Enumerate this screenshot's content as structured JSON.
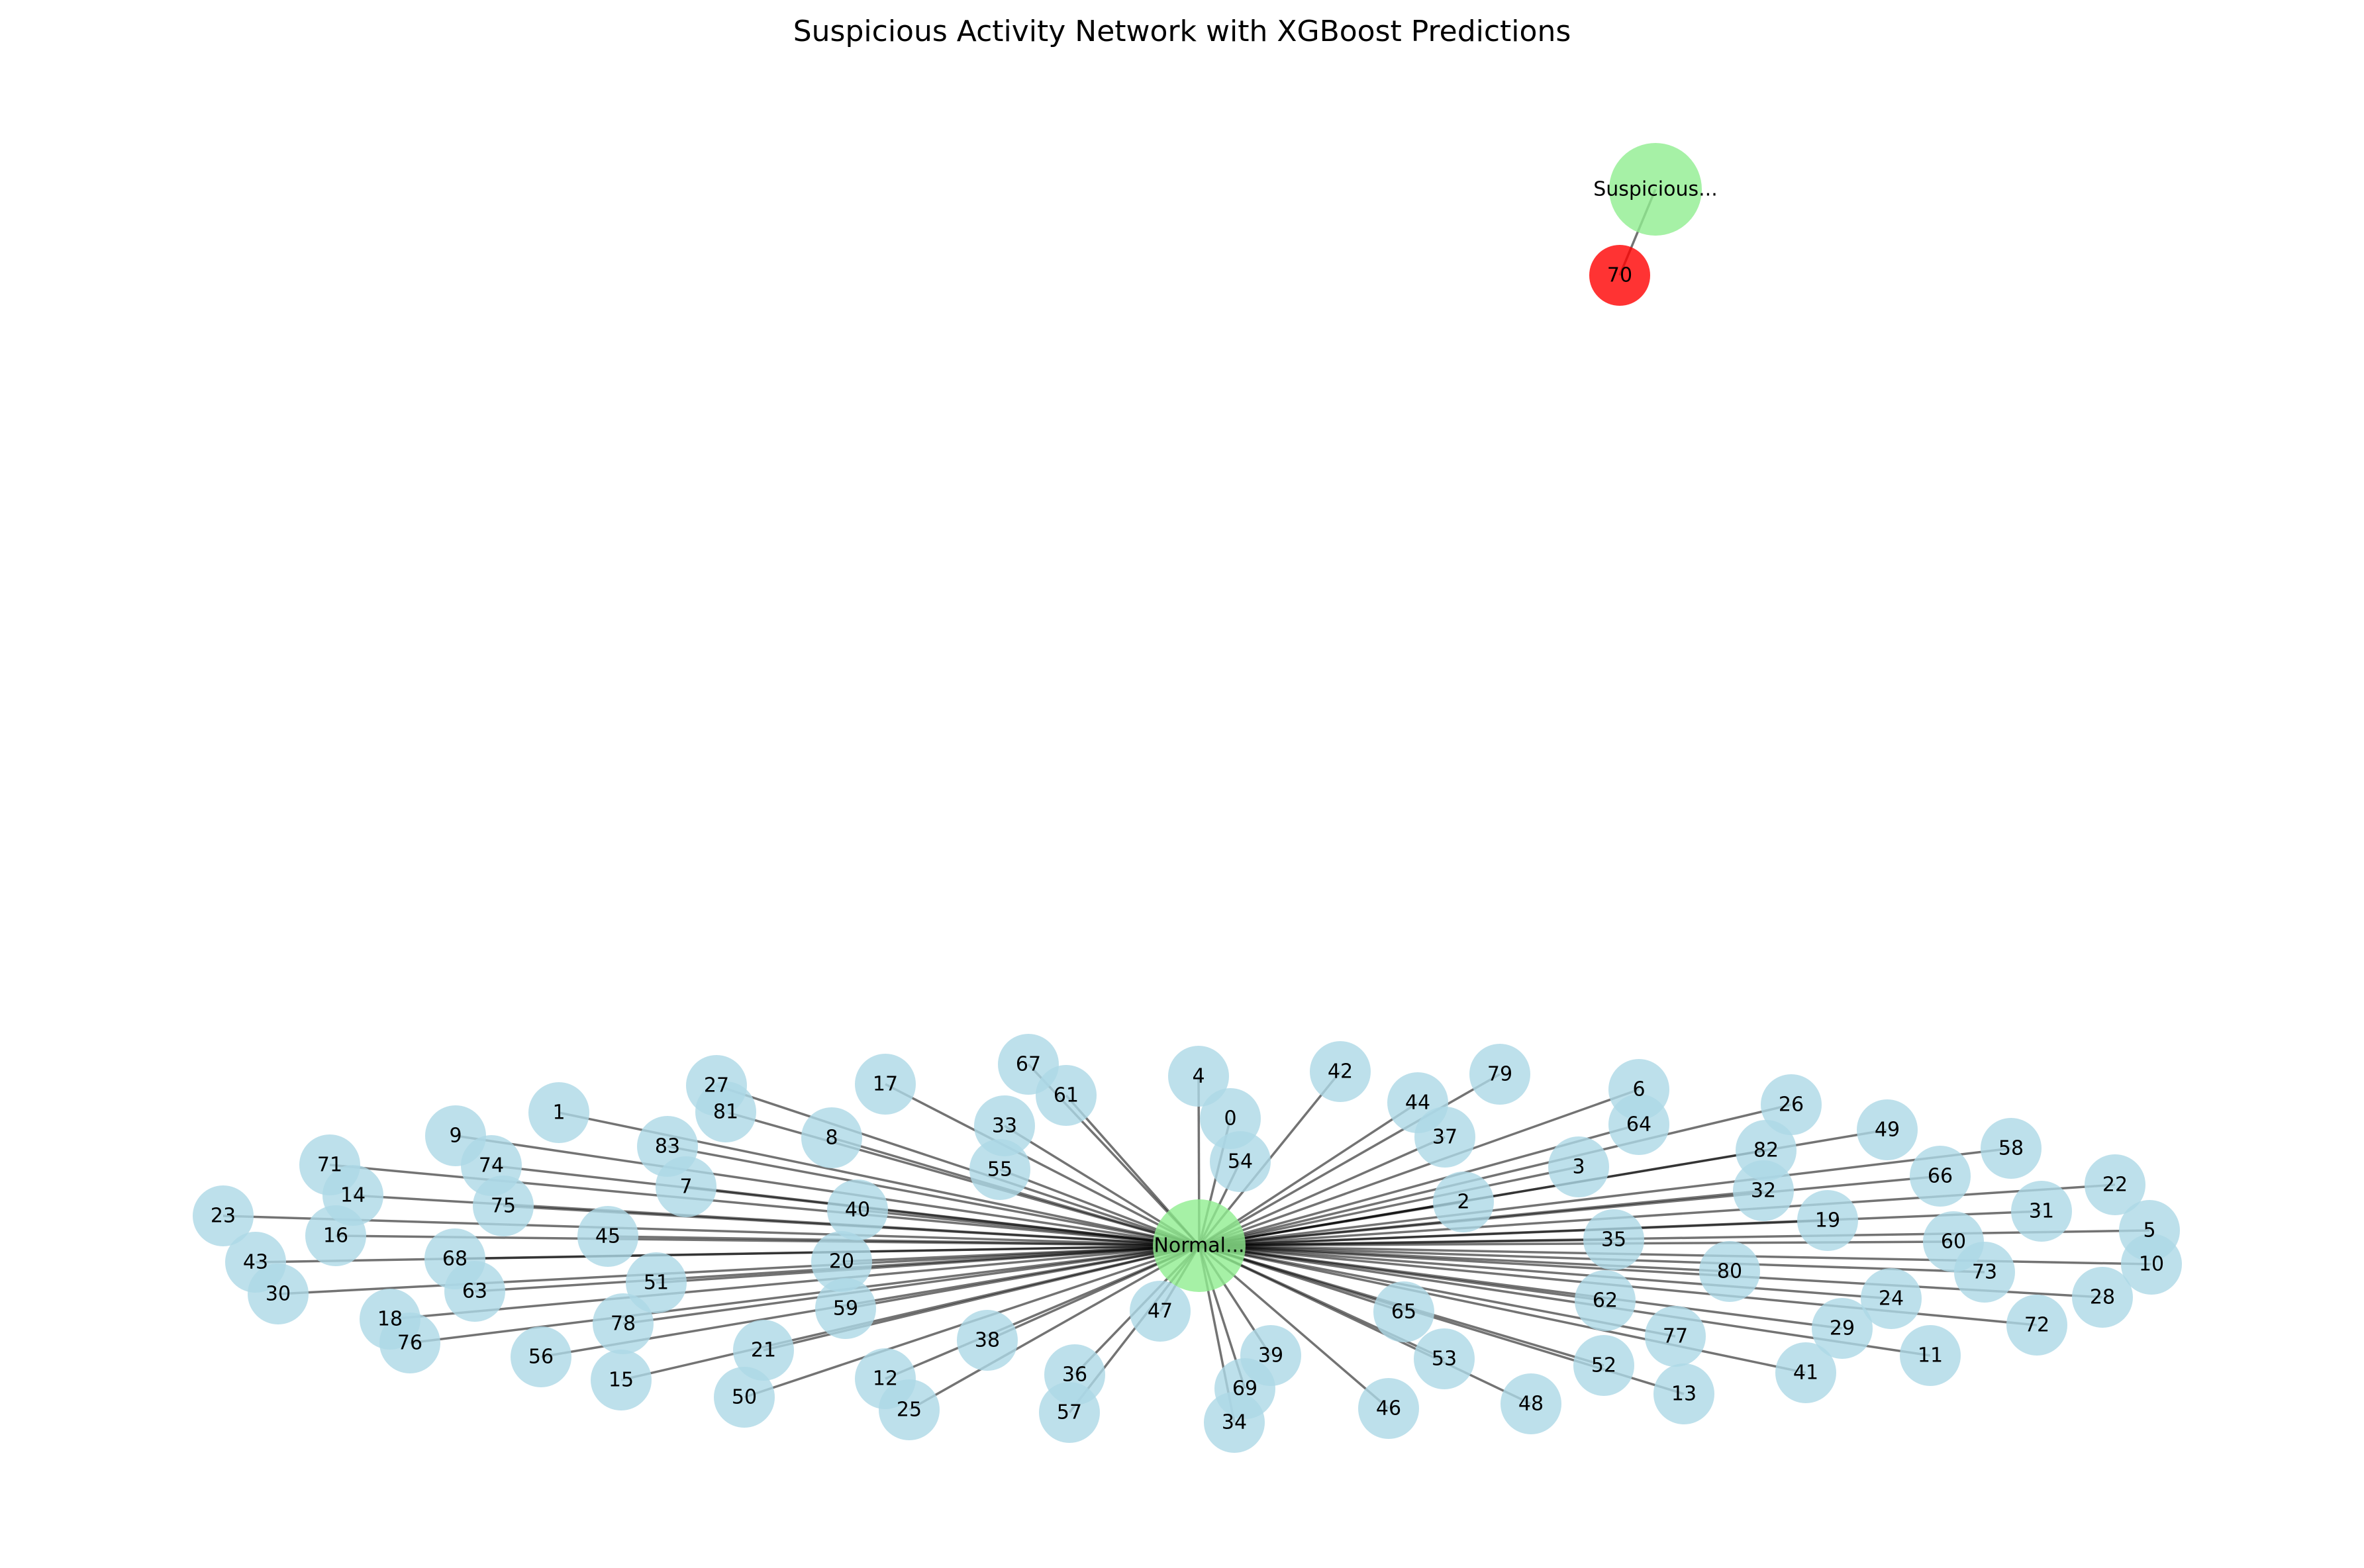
{
  "title": "Suspicious Activity Network with XGBoost Predictions",
  "colors": {
    "normal_node": "#add8e6",
    "hub_node": "#90ee90",
    "suspicious_node": "#ff0000",
    "edge": "#000000"
  },
  "hubs": [
    {
      "id": "normal-hub",
      "label": "Normal..."
    },
    {
      "id": "suspicious-hub",
      "label": "Suspicious..."
    }
  ],
  "nodes": [
    {
      "id": "0",
      "label": "0",
      "class": "normal",
      "hub": "normal-hub"
    },
    {
      "id": "1",
      "label": "1",
      "class": "normal",
      "hub": "normal-hub"
    },
    {
      "id": "2",
      "label": "2",
      "class": "normal",
      "hub": "normal-hub"
    },
    {
      "id": "3",
      "label": "3",
      "class": "normal",
      "hub": "normal-hub"
    },
    {
      "id": "4",
      "label": "4",
      "class": "normal",
      "hub": "normal-hub"
    },
    {
      "id": "5",
      "label": "5",
      "class": "normal",
      "hub": "normal-hub"
    },
    {
      "id": "6",
      "label": "6",
      "class": "normal",
      "hub": "normal-hub"
    },
    {
      "id": "7",
      "label": "7",
      "class": "normal",
      "hub": "normal-hub"
    },
    {
      "id": "8",
      "label": "8",
      "class": "normal",
      "hub": "normal-hub"
    },
    {
      "id": "9",
      "label": "9",
      "class": "normal",
      "hub": "normal-hub"
    },
    {
      "id": "10",
      "label": "10",
      "class": "normal",
      "hub": "normal-hub"
    },
    {
      "id": "11",
      "label": "11",
      "class": "normal",
      "hub": "normal-hub"
    },
    {
      "id": "12",
      "label": "12",
      "class": "normal",
      "hub": "normal-hub"
    },
    {
      "id": "13",
      "label": "13",
      "class": "normal",
      "hub": "normal-hub"
    },
    {
      "id": "14",
      "label": "14",
      "class": "normal",
      "hub": "normal-hub"
    },
    {
      "id": "15",
      "label": "15",
      "class": "normal",
      "hub": "normal-hub"
    },
    {
      "id": "16",
      "label": "16",
      "class": "normal",
      "hub": "normal-hub"
    },
    {
      "id": "17",
      "label": "17",
      "class": "normal",
      "hub": "normal-hub"
    },
    {
      "id": "18",
      "label": "18",
      "class": "normal",
      "hub": "normal-hub"
    },
    {
      "id": "19",
      "label": "19",
      "class": "normal",
      "hub": "normal-hub"
    },
    {
      "id": "20",
      "label": "20",
      "class": "normal",
      "hub": "normal-hub"
    },
    {
      "id": "21",
      "label": "21",
      "class": "normal",
      "hub": "normal-hub"
    },
    {
      "id": "22",
      "label": "22",
      "class": "normal",
      "hub": "normal-hub"
    },
    {
      "id": "23",
      "label": "23",
      "class": "normal",
      "hub": "normal-hub"
    },
    {
      "id": "24",
      "label": "24",
      "class": "normal",
      "hub": "normal-hub"
    },
    {
      "id": "25",
      "label": "25",
      "class": "normal",
      "hub": "normal-hub"
    },
    {
      "id": "26",
      "label": "26",
      "class": "normal",
      "hub": "normal-hub"
    },
    {
      "id": "27",
      "label": "27",
      "class": "normal",
      "hub": "normal-hub"
    },
    {
      "id": "28",
      "label": "28",
      "class": "normal",
      "hub": "normal-hub"
    },
    {
      "id": "29",
      "label": "29",
      "class": "normal",
      "hub": "normal-hub"
    },
    {
      "id": "30",
      "label": "30",
      "class": "normal",
      "hub": "normal-hub"
    },
    {
      "id": "31",
      "label": "31",
      "class": "normal",
      "hub": "normal-hub"
    },
    {
      "id": "32",
      "label": "32",
      "class": "normal",
      "hub": "normal-hub"
    },
    {
      "id": "33",
      "label": "33",
      "class": "normal",
      "hub": "normal-hub"
    },
    {
      "id": "34",
      "label": "34",
      "class": "normal",
      "hub": "normal-hub"
    },
    {
      "id": "35",
      "label": "35",
      "class": "normal",
      "hub": "normal-hub"
    },
    {
      "id": "36",
      "label": "36",
      "class": "normal",
      "hub": "normal-hub"
    },
    {
      "id": "37",
      "label": "37",
      "class": "normal",
      "hub": "normal-hub"
    },
    {
      "id": "38",
      "label": "38",
      "class": "normal",
      "hub": "normal-hub"
    },
    {
      "id": "39",
      "label": "39",
      "class": "normal",
      "hub": "normal-hub"
    },
    {
      "id": "40",
      "label": "40",
      "class": "normal",
      "hub": "normal-hub"
    },
    {
      "id": "41",
      "label": "41",
      "class": "normal",
      "hub": "normal-hub"
    },
    {
      "id": "42",
      "label": "42",
      "class": "normal",
      "hub": "normal-hub"
    },
    {
      "id": "43",
      "label": "43",
      "class": "normal",
      "hub": "normal-hub"
    },
    {
      "id": "44",
      "label": "44",
      "class": "normal",
      "hub": "normal-hub"
    },
    {
      "id": "45",
      "label": "45",
      "class": "normal",
      "hub": "normal-hub"
    },
    {
      "id": "46",
      "label": "46",
      "class": "normal",
      "hub": "normal-hub"
    },
    {
      "id": "47",
      "label": "47",
      "class": "normal",
      "hub": "normal-hub"
    },
    {
      "id": "48",
      "label": "48",
      "class": "normal",
      "hub": "normal-hub"
    },
    {
      "id": "49",
      "label": "49",
      "class": "normal",
      "hub": "normal-hub"
    },
    {
      "id": "50",
      "label": "50",
      "class": "normal",
      "hub": "normal-hub"
    },
    {
      "id": "51",
      "label": "51",
      "class": "normal",
      "hub": "normal-hub"
    },
    {
      "id": "52",
      "label": "52",
      "class": "normal",
      "hub": "normal-hub"
    },
    {
      "id": "53",
      "label": "53",
      "class": "normal",
      "hub": "normal-hub"
    },
    {
      "id": "54",
      "label": "54",
      "class": "normal",
      "hub": "normal-hub"
    },
    {
      "id": "55",
      "label": "55",
      "class": "normal",
      "hub": "normal-hub"
    },
    {
      "id": "56",
      "label": "56",
      "class": "normal",
      "hub": "normal-hub"
    },
    {
      "id": "57",
      "label": "57",
      "class": "normal",
      "hub": "normal-hub"
    },
    {
      "id": "58",
      "label": "58",
      "class": "normal",
      "hub": "normal-hub"
    },
    {
      "id": "59",
      "label": "59",
      "class": "normal",
      "hub": "normal-hub"
    },
    {
      "id": "60",
      "label": "60",
      "class": "normal",
      "hub": "normal-hub"
    },
    {
      "id": "61",
      "label": "61",
      "class": "normal",
      "hub": "normal-hub"
    },
    {
      "id": "62",
      "label": "62",
      "class": "normal",
      "hub": "normal-hub"
    },
    {
      "id": "63",
      "label": "63",
      "class": "normal",
      "hub": "normal-hub"
    },
    {
      "id": "64",
      "label": "64",
      "class": "normal",
      "hub": "normal-hub"
    },
    {
      "id": "65",
      "label": "65",
      "class": "normal",
      "hub": "normal-hub"
    },
    {
      "id": "66",
      "label": "66",
      "class": "normal",
      "hub": "normal-hub"
    },
    {
      "id": "67",
      "label": "67",
      "class": "normal",
      "hub": "normal-hub"
    },
    {
      "id": "68",
      "label": "68",
      "class": "normal",
      "hub": "normal-hub"
    },
    {
      "id": "69",
      "label": "69",
      "class": "normal",
      "hub": "normal-hub"
    },
    {
      "id": "70",
      "label": "70",
      "class": "suspicious",
      "hub": "suspicious-hub"
    },
    {
      "id": "71",
      "label": "71",
      "class": "normal",
      "hub": "normal-hub"
    },
    {
      "id": "72",
      "label": "72",
      "class": "normal",
      "hub": "normal-hub"
    },
    {
      "id": "73",
      "label": "73",
      "class": "normal",
      "hub": "normal-hub"
    },
    {
      "id": "74",
      "label": "74",
      "class": "normal",
      "hub": "normal-hub"
    },
    {
      "id": "75",
      "label": "75",
      "class": "normal",
      "hub": "normal-hub"
    },
    {
      "id": "76",
      "label": "76",
      "class": "normal",
      "hub": "normal-hub"
    },
    {
      "id": "77",
      "label": "77",
      "class": "normal",
      "hub": "normal-hub"
    },
    {
      "id": "78",
      "label": "78",
      "class": "normal",
      "hub": "normal-hub"
    },
    {
      "id": "79",
      "label": "79",
      "class": "normal",
      "hub": "normal-hub"
    },
    {
      "id": "80",
      "label": "80",
      "class": "normal",
      "hub": "normal-hub"
    },
    {
      "id": "81",
      "label": "81",
      "class": "normal",
      "hub": "normal-hub"
    },
    {
      "id": "82",
      "label": "82",
      "class": "normal",
      "hub": "normal-hub"
    },
    {
      "id": "83",
      "label": "83",
      "class": "normal",
      "hub": "normal-hub"
    }
  ]
}
